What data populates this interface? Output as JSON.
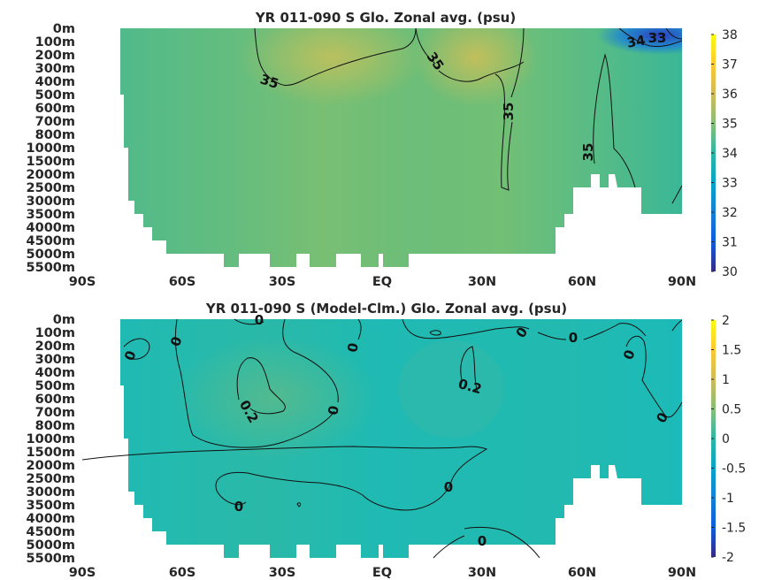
{
  "chart_data": [
    {
      "type": "heatmap",
      "title": "YR 011-090 S Glo. Zonal avg. (psu)",
      "xlabel": "",
      "ylabel": "",
      "x_ticks": [
        "90S",
        "60S",
        "30S",
        "EQ",
        "30N",
        "60N",
        "90N"
      ],
      "y_ticks": [
        "0m",
        "100m",
        "200m",
        "300m",
        "400m",
        "500m",
        "600m",
        "700m",
        "800m",
        "1000m",
        "1500m",
        "2000m",
        "2500m",
        "3000m",
        "3500m",
        "4000m",
        "4500m",
        "5000m",
        "5500m"
      ],
      "colorbar_ticks": [
        "38",
        "37",
        "36",
        "35",
        "34",
        "33",
        "32",
        "31",
        "30"
      ],
      "colorbar_range": [
        30,
        38
      ],
      "contour_labels": [
        "35",
        "35",
        "35",
        "35",
        "34",
        "33"
      ],
      "colormap": "parula"
    },
    {
      "type": "heatmap",
      "title": "YR 011-090 S (Model-Clm.) Glo. Zonal avg. (psu)",
      "xlabel": "",
      "ylabel": "",
      "x_ticks": [
        "90S",
        "60S",
        "30S",
        "EQ",
        "30N",
        "60N",
        "90N"
      ],
      "y_ticks": [
        "0m",
        "100m",
        "200m",
        "300m",
        "400m",
        "500m",
        "600m",
        "700m",
        "800m",
        "1000m",
        "1500m",
        "2000m",
        "2500m",
        "3000m",
        "3500m",
        "4000m",
        "4500m",
        "5000m",
        "5500m"
      ],
      "colorbar_ticks": [
        "2",
        "1.5",
        "1",
        "0.5",
        "0",
        "-0.5",
        "-1",
        "-1.5",
        "-2"
      ],
      "colorbar_range": [
        -2,
        2
      ],
      "contour_labels": [
        "0",
        "0",
        "0",
        "0",
        "0",
        "0",
        "0",
        "0",
        "0",
        "0",
        "0",
        "0",
        "0.2",
        "0.2"
      ],
      "colormap": "parula"
    }
  ]
}
